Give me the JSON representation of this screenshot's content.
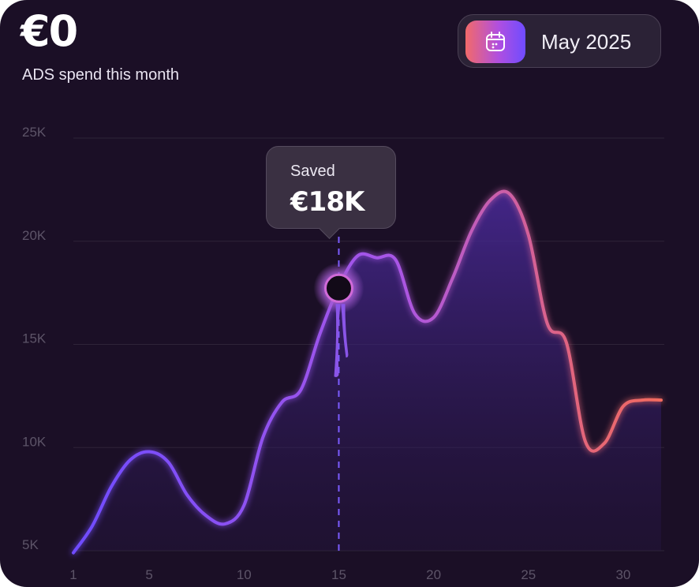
{
  "header": {
    "amount": "€0",
    "subtitle": "ADS spend this month"
  },
  "month_picker": {
    "label": "May 2025",
    "icon": "calendar-icon"
  },
  "tooltip": {
    "label": "Saved",
    "value": "€18K",
    "x": 15
  },
  "colors": {
    "background": "#1b0f26",
    "line_start": "#6f4cff",
    "line_mid": "#b04fe0",
    "line_end": "#f26a6a",
    "grid": "#2e2438",
    "tick_text": "#5d5468"
  },
  "chart_data": {
    "type": "area",
    "title": "",
    "xlabel": "",
    "ylabel": "",
    "x_ticks": [
      "1",
      "5",
      "10",
      "15",
      "20",
      "25",
      "30"
    ],
    "y_ticks": [
      "5K",
      "10K",
      "15K",
      "20K",
      "25K"
    ],
    "xlim": [
      1,
      32
    ],
    "ylim": [
      5000,
      25000
    ],
    "grid": true,
    "legend": "none",
    "series": [
      {
        "x": [
          1,
          2,
          3,
          4,
          5,
          6,
          7,
          8,
          9,
          10,
          11,
          12,
          13,
          14,
          15,
          16,
          17,
          18,
          19,
          20,
          21,
          22,
          23,
          24,
          25,
          26,
          27,
          28,
          29,
          30,
          31,
          32
        ],
        "values": [
          4900,
          6200,
          8100,
          9400,
          9800,
          9300,
          7700,
          6700,
          6300,
          7200,
          10500,
          12200,
          12800,
          15500,
          17800,
          19300,
          19200,
          19100,
          16500,
          16300,
          18200,
          20500,
          22000,
          22300,
          20300,
          16000,
          15100,
          10300,
          10200,
          12000,
          12300,
          12300
        ]
      }
    ]
  }
}
